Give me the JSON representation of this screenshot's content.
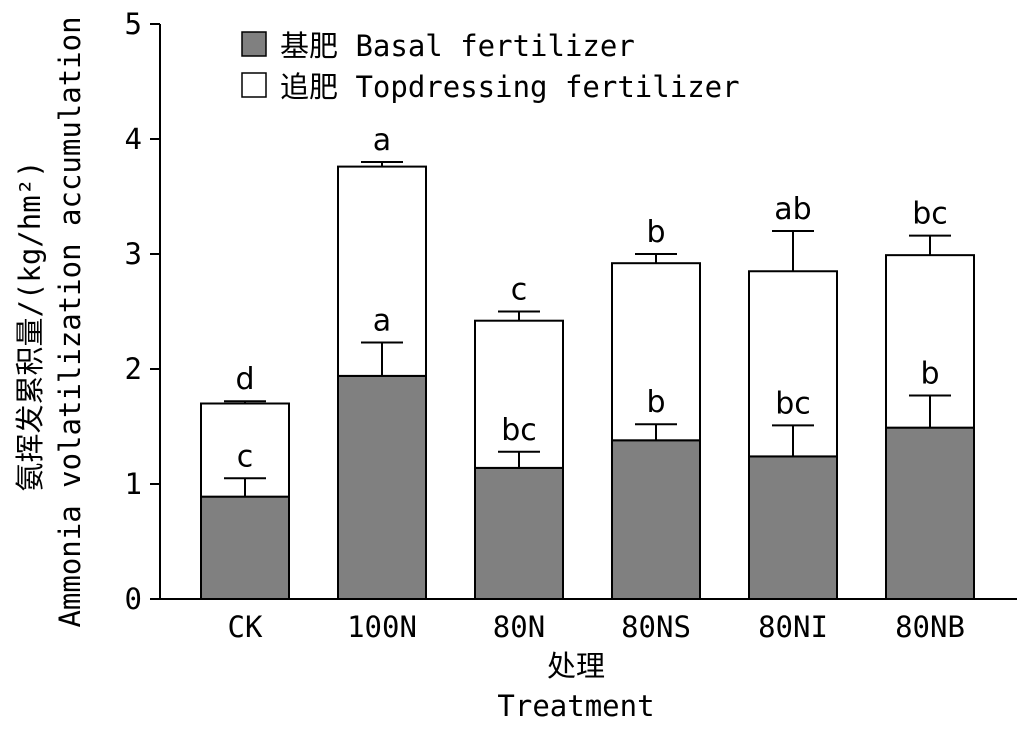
{
  "chart_data": {
    "type": "bar",
    "stacked": true,
    "categories": [
      "CK",
      "100N",
      "80N",
      "80NS",
      "80NI",
      "80NB"
    ],
    "series": [
      {
        "name": "基肥 Basal fertilizer",
        "color": "#808080",
        "values": [
          0.89,
          1.94,
          1.14,
          1.38,
          1.24,
          1.49
        ],
        "error": [
          0.16,
          0.29,
          0.14,
          0.14,
          0.27,
          0.28
        ],
        "letters": [
          "c",
          "a",
          "bc",
          "b",
          "bc",
          "b"
        ]
      },
      {
        "name": "追肥 Topdressing fertilizer",
        "color": "#ffffff",
        "values": [
          0.81,
          1.82,
          1.28,
          1.54,
          1.61,
          1.5
        ],
        "error": [
          0.02,
          0.04,
          0.08,
          0.08,
          0.35,
          0.17
        ],
        "letters": [
          "d",
          "a",
          "c",
          "b",
          "ab",
          "bc"
        ]
      }
    ],
    "y_ticks": [
      "0",
      "1",
      "2",
      "3",
      "4",
      "5"
    ],
    "xlabel_zh": "处理",
    "xlabel_en": "Treatment",
    "ylabel_zh": "氨挥发累积量/(kg/hm²)",
    "ylabel_en": "Ammonia volatilization accumulation",
    "ylim": [
      0,
      5
    ],
    "grid": false,
    "legend_position": "top-left"
  }
}
